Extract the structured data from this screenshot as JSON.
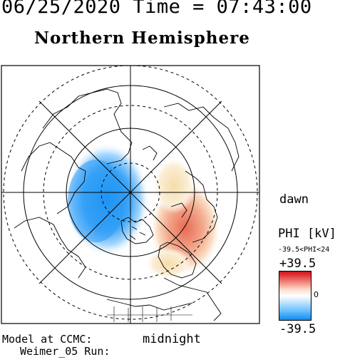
{
  "header": {
    "datetime": "06/25/2020 Time = 07:43:00"
  },
  "title": "Northern Hemisphere",
  "labels": {
    "dawn": "dawn",
    "midnight": "midnight"
  },
  "colorbar": {
    "title": "PHI [kV]",
    "range_text": "-39.5<PHI<24",
    "max": "+39.5",
    "zero": "0",
    "min": "-39.5",
    "colors": {
      "positive": "#d0101a",
      "neutral": "#ffffff",
      "negative": "#108cf0"
    }
  },
  "footer": {
    "model": "Model at CCMC:",
    "run": "Weimer_05 Run:"
  }
}
